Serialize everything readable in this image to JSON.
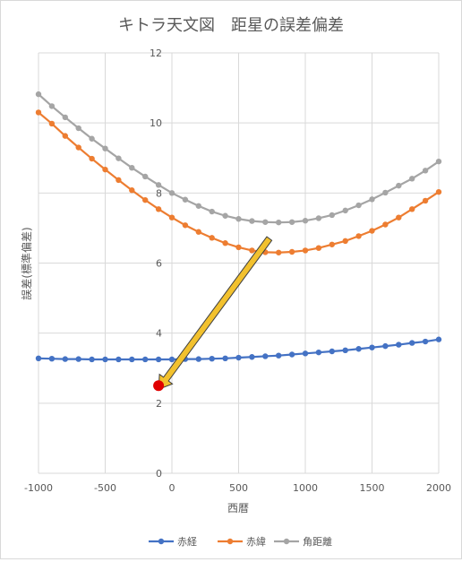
{
  "chart_data": {
    "type": "line",
    "title": "キトラ天文図　距星の誤差偏差",
    "xlabel": "西暦",
    "ylabel": "誤差(標準偏差)",
    "xlim": [
      -1000,
      2000
    ],
    "ylim": [
      0,
      12
    ],
    "x_ticks": [
      "-1000",
      "-500",
      "0",
      "500",
      "1000",
      "1500",
      "2000"
    ],
    "y_ticks": [
      "0",
      "2",
      "4",
      "6",
      "8",
      "10",
      "12"
    ],
    "grid": true,
    "legend_position": "bottom",
    "x": [
      -1000,
      -900,
      -800,
      -700,
      -600,
      -500,
      -400,
      -300,
      -200,
      -100,
      0,
      100,
      200,
      300,
      400,
      500,
      600,
      700,
      800,
      900,
      1000,
      1100,
      1200,
      1300,
      1400,
      1500,
      1600,
      1700,
      1800,
      1900,
      2000
    ],
    "series": [
      {
        "name": "赤経",
        "color": "#4472c4",
        "values": [
          3.28,
          3.27,
          3.26,
          3.26,
          3.25,
          3.25,
          3.25,
          3.25,
          3.25,
          3.25,
          3.25,
          3.26,
          3.26,
          3.27,
          3.28,
          3.3,
          3.32,
          3.34,
          3.36,
          3.39,
          3.42,
          3.45,
          3.48,
          3.51,
          3.55,
          3.59,
          3.63,
          3.67,
          3.72,
          3.76,
          3.82
        ]
      },
      {
        "name": "赤緯",
        "color": "#ed7d31",
        "values": [
          10.3,
          9.98,
          9.63,
          9.3,
          8.98,
          8.67,
          8.37,
          8.08,
          7.8,
          7.54,
          7.3,
          7.08,
          6.89,
          6.72,
          6.57,
          6.45,
          6.36,
          6.31,
          6.3,
          6.32,
          6.36,
          6.43,
          6.53,
          6.63,
          6.77,
          6.92,
          7.1,
          7.3,
          7.54,
          7.78,
          8.03
        ]
      },
      {
        "name": "角距離",
        "color": "#a5a5a5",
        "values": [
          10.82,
          10.48,
          10.16,
          9.85,
          9.55,
          9.27,
          8.99,
          8.72,
          8.47,
          8.23,
          8.0,
          7.81,
          7.63,
          7.47,
          7.35,
          7.26,
          7.2,
          7.17,
          7.16,
          7.17,
          7.21,
          7.28,
          7.37,
          7.5,
          7.65,
          7.82,
          8.01,
          8.21,
          8.41,
          8.64,
          8.9
        ]
      }
    ],
    "annotation": {
      "type": "arrow",
      "from": [
        730,
        6.7
      ],
      "to": [
        -100,
        2.4
      ],
      "color": "#f2c12e"
    },
    "highlight_point": {
      "x": -100,
      "y": 2.5,
      "color": "#e00000"
    }
  }
}
